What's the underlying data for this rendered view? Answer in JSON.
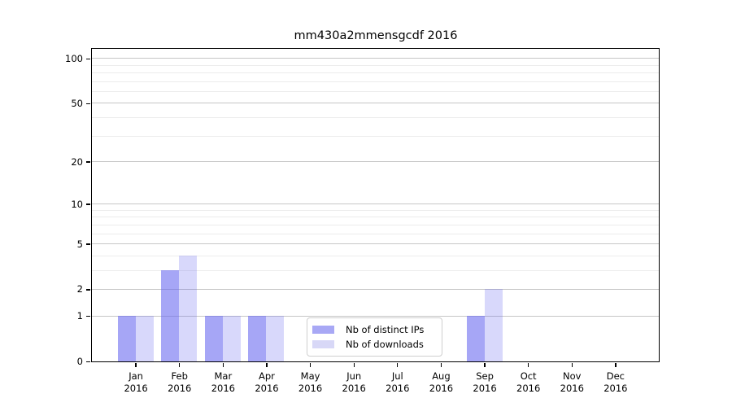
{
  "chart_data": {
    "type": "bar",
    "title": "mm430a2mmensgcdf 2016",
    "categories": [
      "Jan 2016",
      "Feb 2016",
      "Mar 2016",
      "Apr 2016",
      "May 2016",
      "Jun 2016",
      "Jul 2016",
      "Aug 2016",
      "Sep 2016",
      "Oct 2016",
      "Nov 2016",
      "Dec 2016"
    ],
    "series": [
      {
        "name": "Nb of distinct IPs",
        "swatch": "#a8a8f5",
        "fill": "rgba(106,106,240,0.60)",
        "values": [
          1,
          3,
          1,
          1,
          0,
          0,
          0,
          0,
          1,
          0,
          0,
          0
        ]
      },
      {
        "name": "Nb of downloads",
        "swatch": "#d8d8f7",
        "fill": "rgba(106,106,240,0.26)",
        "values": [
          1,
          4,
          1,
          1,
          0,
          0,
          0,
          0,
          2,
          0,
          0,
          0
        ]
      }
    ],
    "yscale": "log1p",
    "ylim": [
      0,
      116
    ],
    "yticks": [
      0,
      1,
      2,
      5,
      10,
      20,
      50,
      100
    ],
    "minor_gridlines": [
      3,
      4,
      6,
      7,
      8,
      9,
      30,
      40,
      60,
      70,
      80,
      90
    ],
    "xlabel": "",
    "ylabel": "",
    "grid": true,
    "legend_position": "lower center"
  }
}
